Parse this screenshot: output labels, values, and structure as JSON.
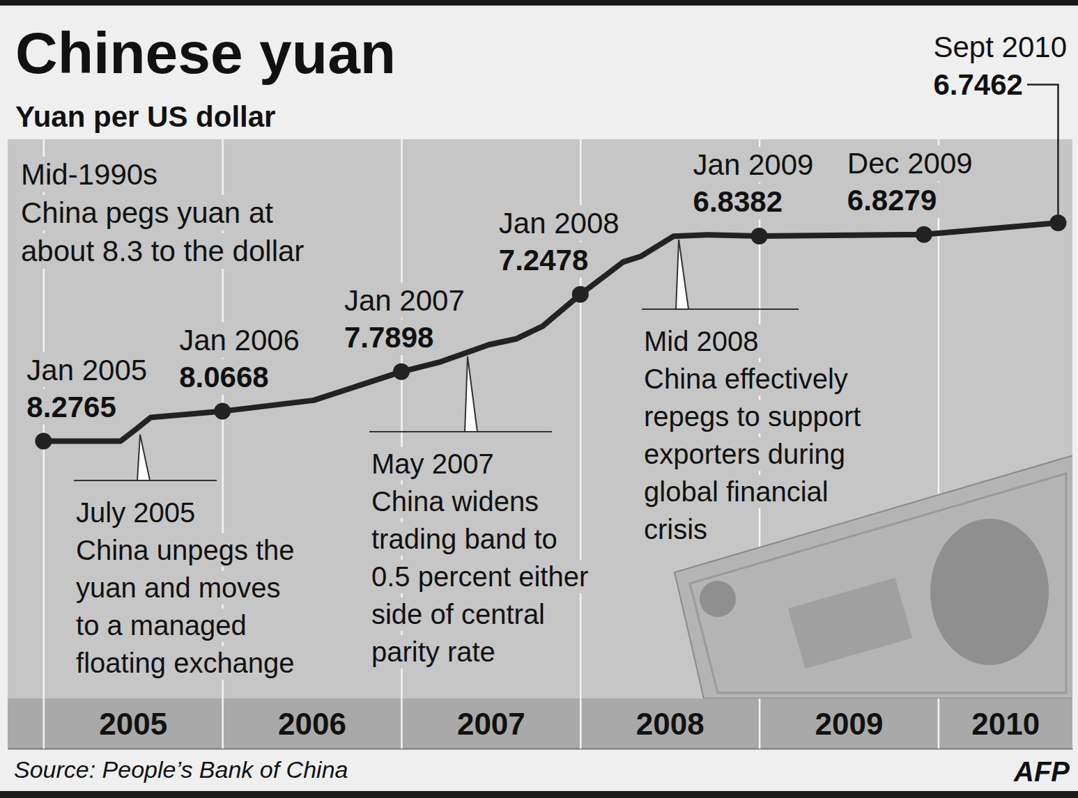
{
  "chart_data": {
    "type": "line",
    "title": "Chinese yuan",
    "subtitle": "Yuan per US dollar",
    "source": "Source: People’s Bank of China",
    "credit": "AFP",
    "xlim": [
      2004.8,
      2010.75
    ],
    "xticks": [
      2005,
      2006,
      2007,
      2008,
      2009,
      2010
    ],
    "ylim": [
      10.08,
      6.16
    ],
    "tick_labels": "x",
    "grid": true,
    "color": "#222222",
    "series": [
      {
        "type": "line",
        "line_style": "solid",
        "x": [
          2005.0,
          2005.43,
          2005.51,
          2005.6,
          2006.0,
          2006.51,
          2006.73,
          2007.0,
          2007.22,
          2007.49,
          2007.64,
          2007.79,
          2008.0,
          2008.24,
          2008.34,
          2008.52,
          2008.71,
          2009.0,
          2009.92,
          2010.67
        ],
        "values": [
          8.2765,
          8.2765,
          8.2,
          8.11,
          8.0668,
          7.99,
          7.9,
          7.7898,
          7.72,
          7.6,
          7.56,
          7.47,
          7.2478,
          7.02,
          6.98,
          6.84,
          6.83,
          6.8382,
          6.8279,
          6.7462
        ]
      },
      {
        "type": "scatter",
        "marker": "circle",
        "data_labels": true,
        "x": [
          2005,
          2006,
          2007,
          2008,
          2009,
          2009.92,
          2010.67
        ],
        "labels": [
          "Jan 2005",
          "Jan 2006",
          "Jan 2007",
          "Jan 2008",
          "Jan 2009",
          "Dec 2009",
          "Sept 2010"
        ],
        "values": [
          8.2765,
          8.0668,
          7.7898,
          7.2478,
          6.8382,
          6.8279,
          6.7462
        ]
      }
    ],
    "annotations": [
      {
        "date": "Mid-1990s",
        "text": [
          "China pegs yuan at",
          "about 8.3 to the dollar"
        ]
      },
      {
        "date": "July 2005",
        "x": 2005.54,
        "text": [
          "China unpegs the",
          "yuan and moves",
          "to a managed",
          "floating exchange"
        ]
      },
      {
        "date": "May 2007",
        "x": 2007.37,
        "text": [
          "China widens",
          "trading band to",
          "0.5 percent either",
          "side of central",
          "parity rate"
        ]
      },
      {
        "date": "Mid 2008",
        "x": 2008.55,
        "text": [
          "China effectively",
          "repegs to support",
          "exporters during",
          "global financial",
          "crisis"
        ]
      }
    ]
  }
}
